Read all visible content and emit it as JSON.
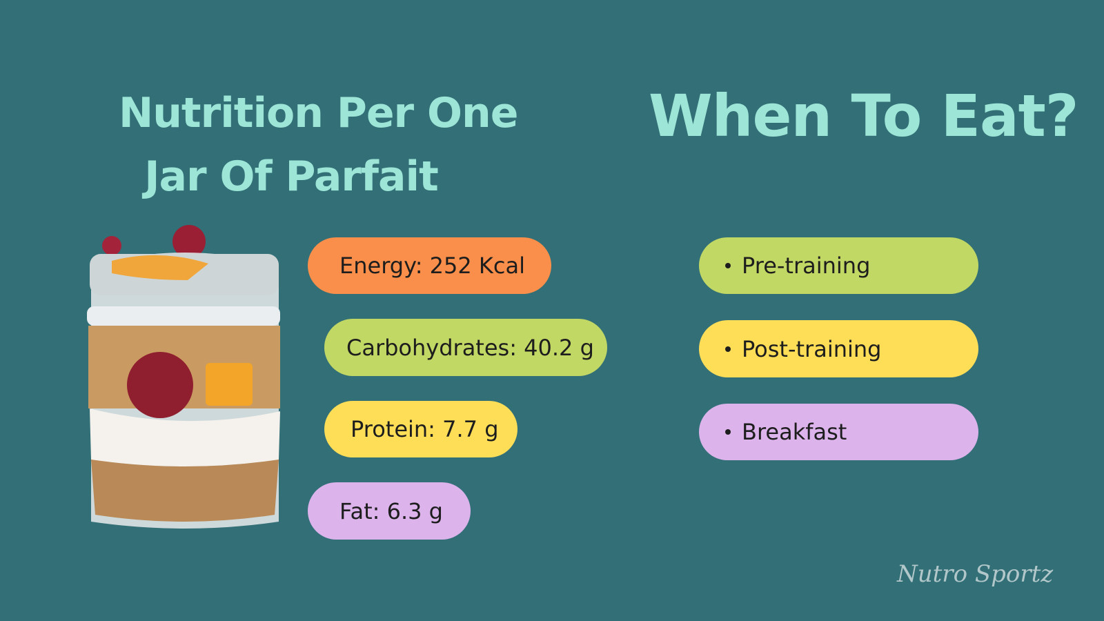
{
  "left": {
    "title_lines": [
      "Nutrition Per One",
      "Jar Of Parfait"
    ],
    "nutrients": [
      "Energy: 252 Kcal",
      "Carbohydrates: 40.2 g",
      "Protein: 7.7 g",
      "Fat: 6.3 g"
    ]
  },
  "right": {
    "title": "When To Eat?",
    "items": [
      "Pre-training",
      "Post-training",
      "Breakfast"
    ]
  },
  "brand": "Nutro Sportz"
}
